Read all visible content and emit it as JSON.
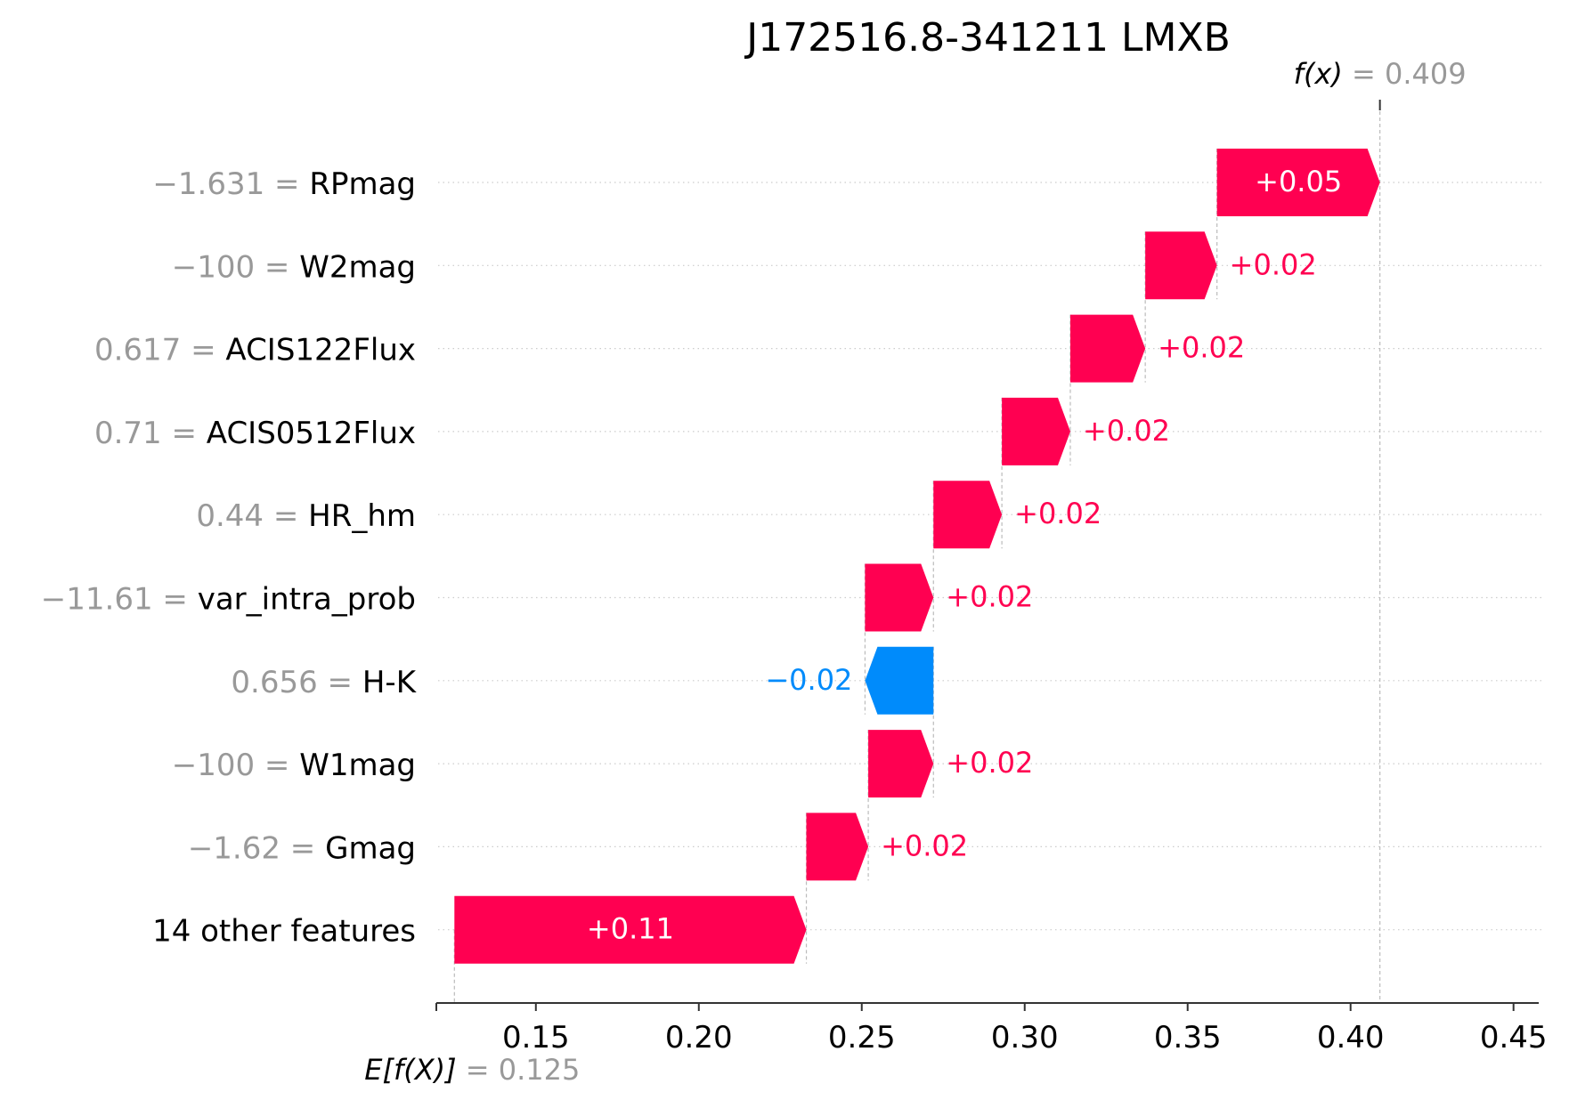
{
  "chart_data": {
    "type": "waterfall",
    "title": "J172516.8-341211 LMXB",
    "base_value": 0.125,
    "output_value": 0.409,
    "base_label": {
      "prefix": "E[f(X)]",
      "eq": " = ",
      "value": "0.125"
    },
    "output_label": {
      "prefix": "f(x)",
      "eq": " = ",
      "value": "0.409"
    },
    "xlim": [
      0.12,
      0.455
    ],
    "xticks": [
      0.15,
      0.2,
      0.25,
      0.3,
      0.35,
      0.4,
      0.45
    ],
    "xtick_labels": [
      "0.15",
      "0.20",
      "0.25",
      "0.30",
      "0.35",
      "0.40",
      "0.45"
    ],
    "features": [
      {
        "value": "−1.631",
        "name": "RPmag",
        "shap": 0.05,
        "start": 0.359,
        "end": 0.409,
        "label": "+0.05",
        "label_inside": true
      },
      {
        "value": "−100",
        "name": "W2mag",
        "shap": 0.022,
        "start": 0.337,
        "end": 0.359,
        "label": "+0.02",
        "label_inside": false
      },
      {
        "value": "0.617",
        "name": "ACIS122Flux",
        "shap": 0.023,
        "start": 0.314,
        "end": 0.337,
        "label": "+0.02",
        "label_inside": false
      },
      {
        "value": "0.71",
        "name": "ACIS0512Flux",
        "shap": 0.021,
        "start": 0.293,
        "end": 0.314,
        "label": "+0.02",
        "label_inside": false
      },
      {
        "value": "0.44",
        "name": "HR_hm",
        "shap": 0.021,
        "start": 0.272,
        "end": 0.293,
        "label": "+0.02",
        "label_inside": false
      },
      {
        "value": "−11.61",
        "name": "var_intra_prob",
        "shap": 0.021,
        "start": 0.251,
        "end": 0.272,
        "label": "+0.02",
        "label_inside": false
      },
      {
        "value": "0.656",
        "name": "H-K",
        "shap": -0.021,
        "start": 0.272,
        "end": 0.251,
        "label": "−0.02",
        "label_inside": false
      },
      {
        "value": "−100",
        "name": "W1mag",
        "shap": 0.02,
        "start": 0.252,
        "end": 0.272,
        "label": "+0.02",
        "label_inside": false
      },
      {
        "value": "−1.62",
        "name": "Gmag",
        "shap": 0.019,
        "start": 0.233,
        "end": 0.252,
        "label": "+0.02",
        "label_inside": false
      },
      {
        "value": "",
        "name": "14 other features",
        "shap": 0.108,
        "start": 0.125,
        "end": 0.233,
        "label": "+0.11",
        "label_inside": true
      }
    ],
    "colors": {
      "positive": "#ff0051",
      "negative": "#008bfb",
      "value_text": "#999999",
      "axis": "#333333"
    }
  }
}
